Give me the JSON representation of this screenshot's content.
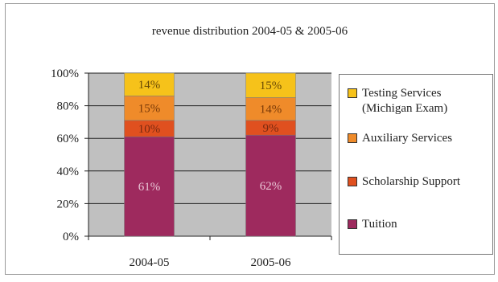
{
  "chart_data": {
    "type": "bar",
    "stacked": true,
    "percent": true,
    "title": "revenue distribution 2004-05 & 2005-06",
    "categories": [
      "2004-05",
      "2005-06"
    ],
    "y_ticks": [
      "0%",
      "20%",
      "40%",
      "60%",
      "80%",
      "100%"
    ],
    "ylim": [
      0,
      100
    ],
    "grid": true,
    "legend_position": "right",
    "series": [
      {
        "name": "Tuition",
        "color": "#9e2a5e",
        "values": [
          61,
          62
        ],
        "labels": [
          "61%",
          "62%"
        ],
        "label_color": "#e9c6d6"
      },
      {
        "name": "Scholarship Support",
        "color": "#e0501f",
        "values": [
          10,
          9
        ],
        "labels": [
          "10%",
          "9%"
        ],
        "label_color": "#7a2a10"
      },
      {
        "name": "Auxiliary Services",
        "color": "#ef8b2a",
        "values": [
          15,
          14
        ],
        "labels": [
          "15%",
          "14%"
        ],
        "label_color": "#7a3a08"
      },
      {
        "name": "Testing Services (Michigan Exam)",
        "color": "#f6c21a",
        "values": [
          14,
          15
        ],
        "labels": [
          "14%",
          "15%"
        ],
        "label_color": "#6a4a05"
      }
    ],
    "legend": [
      {
        "text": "Testing Services",
        "text2": "(Michigan Exam)",
        "color": "#f6c21a"
      },
      {
        "text": "Auxiliary Services",
        "color": "#ef8b2a"
      },
      {
        "text": "Scholarship Support",
        "color": "#e0501f"
      },
      {
        "text": "Tuition",
        "color": "#9e2a5e"
      }
    ]
  }
}
